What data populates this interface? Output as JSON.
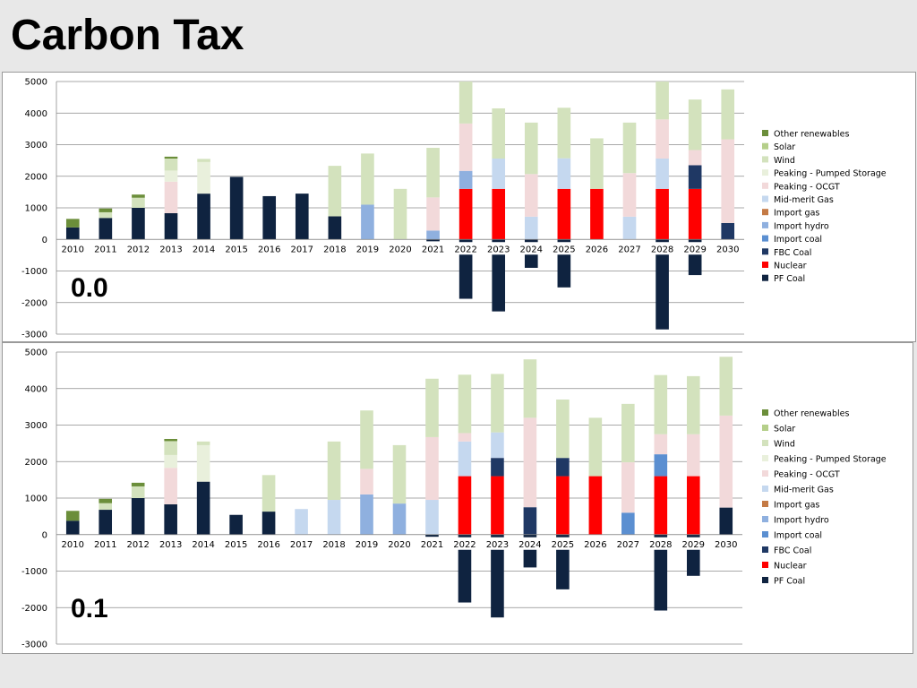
{
  "slide": {
    "title": "Carbon Tax"
  },
  "legend": [
    {
      "name": "Other renewables",
      "color": "#6b8e3a"
    },
    {
      "name": "Solar",
      "color": "#b5cf8a"
    },
    {
      "name": "Wind",
      "color": "#d3e2bd"
    },
    {
      "name": "Peaking - Pumped Storage",
      "color": "#e9f0dc"
    },
    {
      "name": "Peaking - OCGT",
      "color": "#f2d9da"
    },
    {
      "name": "Mid-merit Gas",
      "color": "#c5d8ef"
    },
    {
      "name": "Import gas",
      "color": "#c47a45"
    },
    {
      "name": "Import hydro",
      "color": "#8fb0df"
    },
    {
      "name": "Import coal",
      "color": "#5b8fd1"
    },
    {
      "name": "FBC Coal",
      "color": "#1f3864"
    },
    {
      "name": "Nuclear",
      "color": "#ff0000"
    },
    {
      "name": "PF Coal",
      "color": "#0f2340"
    }
  ],
  "chart_data": [
    {
      "type": "bar",
      "stacked": true,
      "scenario_label": "0.0",
      "categories": [
        "2010",
        "2011",
        "2012",
        "2013",
        "2014",
        "2015",
        "2016",
        "2017",
        "2018",
        "2019",
        "2020",
        "2021",
        "2022",
        "2023",
        "2024",
        "2025",
        "2026",
        "2027",
        "2028",
        "2029",
        "2030"
      ],
      "ylim": [
        -3000,
        5000
      ],
      "yticks": [
        5000,
        4000,
        3000,
        2000,
        1000,
        0,
        -1000,
        -2000,
        -3000
      ],
      "grid": true,
      "legend_position": "right",
      "series": [
        {
          "name": "PF Coal",
          "values": [
            380,
            680,
            1000,
            830,
            1450,
            1980,
            1370,
            1450,
            730,
            0,
            0,
            -60,
            -1880,
            -2280,
            -900,
            -1520,
            0,
            0,
            -2850,
            -1130,
            0
          ]
        },
        {
          "name": "Nuclear",
          "values": [
            0,
            0,
            0,
            0,
            0,
            0,
            0,
            0,
            0,
            0,
            0,
            0,
            1600,
            1600,
            0,
            1600,
            1600,
            0,
            1600,
            1600,
            0
          ]
        },
        {
          "name": "FBC Coal",
          "values": [
            0,
            0,
            0,
            0,
            0,
            0,
            0,
            0,
            0,
            0,
            0,
            0,
            0,
            0,
            0,
            0,
            0,
            0,
            0,
            750,
            520
          ]
        },
        {
          "name": "Import coal",
          "values": [
            0,
            0,
            0,
            0,
            0,
            0,
            0,
            0,
            0,
            0,
            0,
            0,
            0,
            0,
            0,
            0,
            0,
            0,
            0,
            0,
            0
          ]
        },
        {
          "name": "Import hydro",
          "values": [
            0,
            0,
            0,
            0,
            0,
            0,
            0,
            0,
            0,
            1100,
            0,
            280,
            570,
            0,
            0,
            0,
            0,
            0,
            0,
            0,
            0
          ]
        },
        {
          "name": "Import gas",
          "values": [
            0,
            0,
            0,
            0,
            0,
            0,
            0,
            0,
            0,
            0,
            0,
            0,
            0,
            0,
            0,
            0,
            0,
            0,
            0,
            0,
            0
          ]
        },
        {
          "name": "Mid-merit Gas",
          "values": [
            0,
            0,
            0,
            0,
            0,
            0,
            0,
            0,
            0,
            0,
            0,
            0,
            0,
            960,
            720,
            970,
            0,
            720,
            960,
            0,
            0
          ]
        },
        {
          "name": "Peaking - OCGT",
          "values": [
            0,
            0,
            0,
            1000,
            0,
            0,
            0,
            0,
            0,
            0,
            0,
            1050,
            1500,
            0,
            1350,
            0,
            0,
            1380,
            1240,
            480,
            2650
          ]
        },
        {
          "name": "Peaking - Pumped Storage",
          "values": [
            0,
            0,
            0,
            350,
            1000,
            0,
            0,
            0,
            0,
            0,
            0,
            0,
            0,
            0,
            0,
            0,
            0,
            0,
            0,
            0,
            0
          ]
        },
        {
          "name": "Wind",
          "values": [
            0,
            180,
            320,
            380,
            100,
            0,
            0,
            0,
            1600,
            1620,
            1600,
            1570,
            1330,
            1590,
            1630,
            1600,
            1600,
            1600,
            1200,
            1600,
            1580
          ]
        },
        {
          "name": "Solar",
          "values": [
            0,
            0,
            0,
            0,
            0,
            0,
            0,
            0,
            0,
            0,
            0,
            0,
            0,
            0,
            0,
            0,
            0,
            0,
            0,
            0,
            0
          ]
        },
        {
          "name": "Other renewables",
          "values": [
            270,
            120,
            100,
            60,
            0,
            0,
            0,
            0,
            0,
            0,
            0,
            0,
            0,
            0,
            0,
            0,
            0,
            0,
            0,
            0,
            0
          ]
        }
      ]
    },
    {
      "type": "bar",
      "stacked": true,
      "scenario_label": "0.1",
      "categories": [
        "2010",
        "2011",
        "2012",
        "2013",
        "2014",
        "2015",
        "2016",
        "2017",
        "2018",
        "2019",
        "2020",
        "2021",
        "2022",
        "2023",
        "2024",
        "2025",
        "2026",
        "2027",
        "2028",
        "2029",
        "2030"
      ],
      "ylim": [
        -3000,
        5000
      ],
      "yticks": [
        5000,
        4000,
        3000,
        2000,
        1000,
        0,
        -1000,
        -2000,
        -3000
      ],
      "grid": true,
      "legend_position": "right",
      "series": [
        {
          "name": "PF Coal",
          "values": [
            380,
            680,
            1000,
            830,
            1450,
            540,
            630,
            0,
            0,
            0,
            0,
            -60,
            -1860,
            -2270,
            -900,
            -1500,
            0,
            0,
            -2080,
            -1130,
            740
          ]
        },
        {
          "name": "Nuclear",
          "values": [
            0,
            0,
            0,
            0,
            0,
            0,
            0,
            0,
            0,
            0,
            0,
            0,
            1600,
            1600,
            0,
            1600,
            1600,
            0,
            1600,
            1600,
            0
          ]
        },
        {
          "name": "FBC Coal",
          "values": [
            0,
            0,
            0,
            0,
            0,
            0,
            0,
            0,
            0,
            0,
            0,
            0,
            0,
            500,
            750,
            500,
            0,
            0,
            0,
            0,
            0
          ]
        },
        {
          "name": "Import coal",
          "values": [
            0,
            0,
            0,
            0,
            0,
            0,
            0,
            0,
            0,
            0,
            0,
            0,
            0,
            0,
            0,
            0,
            0,
            600,
            600,
            0,
            0
          ]
        },
        {
          "name": "Import hydro",
          "values": [
            0,
            0,
            0,
            0,
            0,
            0,
            0,
            0,
            0,
            1100,
            850,
            0,
            0,
            0,
            0,
            0,
            0,
            0,
            0,
            0,
            0
          ]
        },
        {
          "name": "Import gas",
          "values": [
            0,
            0,
            0,
            0,
            0,
            0,
            0,
            0,
            0,
            0,
            0,
            0,
            0,
            0,
            0,
            0,
            0,
            0,
            0,
            0,
            0
          ]
        },
        {
          "name": "Mid-merit Gas",
          "values": [
            0,
            0,
            0,
            0,
            0,
            0,
            0,
            700,
            950,
            0,
            0,
            950,
            950,
            700,
            0,
            0,
            0,
            0,
            0,
            0,
            0
          ]
        },
        {
          "name": "Peaking - OCGT",
          "values": [
            0,
            0,
            0,
            1000,
            0,
            0,
            0,
            0,
            0,
            700,
            0,
            1720,
            230,
            0,
            2450,
            0,
            0,
            1380,
            550,
            1150,
            2520
          ]
        },
        {
          "name": "Peaking - Pumped Storage",
          "values": [
            0,
            0,
            0,
            350,
            1000,
            0,
            0,
            0,
            0,
            0,
            0,
            0,
            0,
            0,
            0,
            0,
            0,
            0,
            0,
            0,
            0
          ]
        },
        {
          "name": "Wind",
          "values": [
            0,
            180,
            320,
            380,
            100,
            0,
            1000,
            0,
            1600,
            1600,
            1600,
            1600,
            1600,
            1600,
            1600,
            1600,
            1600,
            1600,
            1620,
            1590,
            1610
          ]
        },
        {
          "name": "Solar",
          "values": [
            0,
            0,
            0,
            0,
            0,
            0,
            0,
            0,
            0,
            0,
            0,
            0,
            0,
            0,
            0,
            0,
            0,
            0,
            0,
            0,
            0
          ]
        },
        {
          "name": "Other renewables",
          "values": [
            270,
            120,
            100,
            60,
            0,
            0,
            0,
            0,
            0,
            0,
            0,
            0,
            0,
            0,
            0,
            0,
            0,
            0,
            0,
            0,
            0
          ]
        }
      ]
    }
  ]
}
